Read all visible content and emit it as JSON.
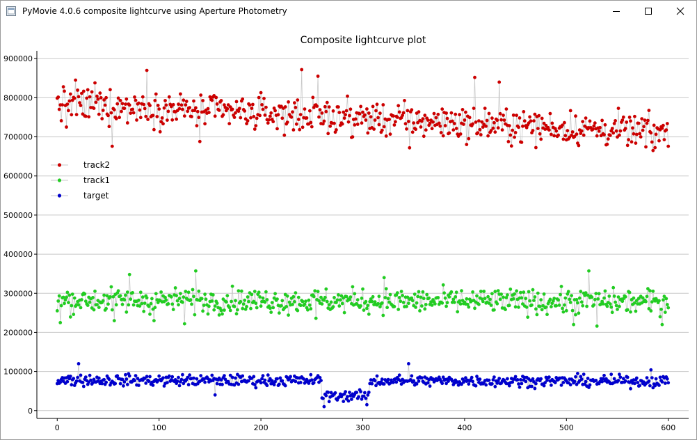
{
  "window": {
    "title": "PyMovie 4.0.6 composite lightcurve using Aperture Photometry",
    "icons": {
      "app": "pymovie-app-icon",
      "minimize": "minimize-icon",
      "maximize": "maximize-icon",
      "close": "close-icon"
    }
  },
  "chart_data": {
    "type": "scatter",
    "title": "Composite lightcurve plot",
    "xlabel": "",
    "ylabel": "",
    "xlim": [
      -20,
      620
    ],
    "ylim": [
      -20000,
      920000
    ],
    "x_ticks": [
      "0",
      "100",
      "200",
      "300",
      "400",
      "500",
      "600"
    ],
    "y_ticks": [
      "0",
      "100000",
      "200000",
      "300000",
      "400000",
      "500000",
      "600000",
      "700000",
      "800000",
      "900000"
    ],
    "grid": "horizontal",
    "legend_position": "left",
    "connecting_lines": true,
    "line_color": "#c8c8c8",
    "series": [
      {
        "name": "track2",
        "color": "#cc0000",
        "x_start": 0,
        "x_end": 600,
        "base_start": 785000,
        "base_end": 710000,
        "noise": 38000,
        "outliers": [
          [
            9,
            725000
          ],
          [
            18,
            845000
          ],
          [
            37,
            838000
          ],
          [
            54,
            676000
          ],
          [
            88,
            870000
          ],
          [
            140,
            688000
          ],
          [
            240,
            872000
          ],
          [
            256,
            855000
          ],
          [
            290,
            700000
          ],
          [
            346,
            672000
          ],
          [
            410,
            852000
          ],
          [
            434,
            840000
          ],
          [
            585,
            665000
          ],
          [
            600,
            676000
          ]
        ]
      },
      {
        "name": "track1",
        "color": "#22cc22",
        "x_start": 0,
        "x_end": 600,
        "base_start": 282000,
        "base_end": 278000,
        "noise": 28000,
        "outliers": [
          [
            3,
            225000
          ],
          [
            56,
            230000
          ],
          [
            71,
            348000
          ],
          [
            95,
            230000
          ],
          [
            125,
            222000
          ],
          [
            136,
            357000
          ],
          [
            254,
            236000
          ],
          [
            321,
            340000
          ],
          [
            507,
            220000
          ],
          [
            522,
            357000
          ],
          [
            530,
            216000
          ],
          [
            594,
            220000
          ]
        ]
      },
      {
        "name": "target",
        "color": "#0000cc",
        "x_start": 0,
        "x_end": 600,
        "base_start": 78000,
        "base_end": 75000,
        "noise": 13000,
        "event": {
          "x_start": 260,
          "x_end": 306,
          "level": 38000,
          "noise": 12000
        },
        "outliers": [
          [
            21,
            120000
          ],
          [
            345,
            120000
          ],
          [
            262,
            10000
          ],
          [
            304,
            15000
          ],
          [
            155,
            40000
          ],
          [
            583,
            104000
          ]
        ]
      }
    ]
  }
}
